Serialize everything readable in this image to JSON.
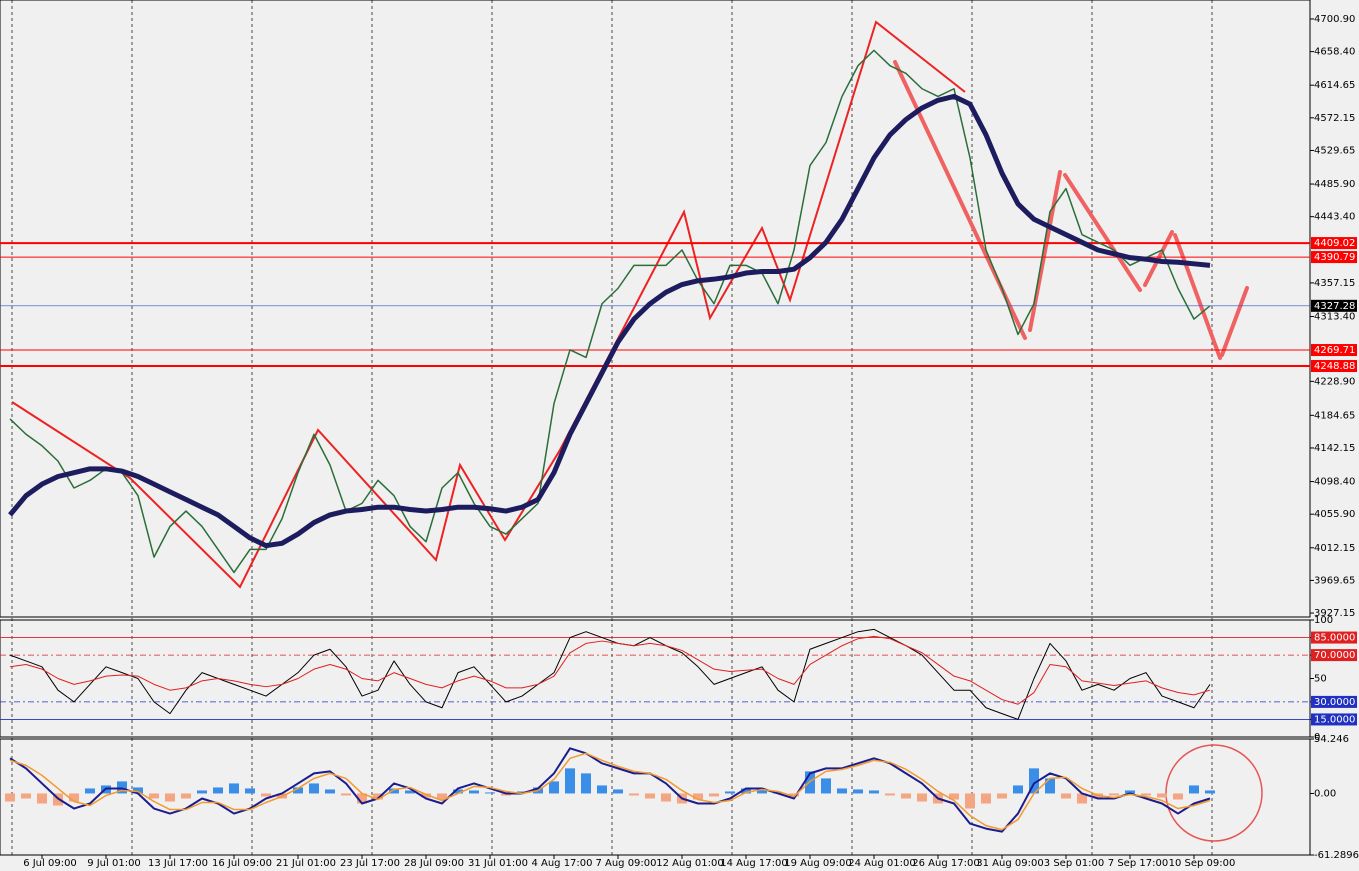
{
  "chart_data": [
    {
      "type": "line",
      "categories": [
        null,
        null,
        "6 Jul 09:00",
        null,
        null,
        null,
        "9 Jul 01:00",
        null,
        null,
        null,
        "13 Jul 17:00",
        null,
        null,
        null,
        "16 Jul 09:00",
        null,
        null,
        null,
        "21 Jul 01:00",
        null,
        null,
        null,
        "23 Jul 17:00",
        null,
        null,
        null,
        "28 Jul 09:00",
        null,
        null,
        null,
        "31 Jul 01:00",
        null,
        null,
        null,
        "4 Aug 17:00",
        null,
        null,
        null,
        "7 Aug 09:00",
        null,
        null,
        null,
        "12 Aug 01:00",
        null,
        null,
        null,
        "14 Aug 17:00",
        null,
        null,
        null,
        "19 Aug 09:00",
        null,
        null,
        null,
        "24 Aug 01:00",
        null,
        null,
        null,
        "26 Aug 17:00",
        null,
        null,
        null,
        "31 Aug 09:00",
        null,
        null,
        null,
        "3 Sep 01:00",
        null,
        null,
        null,
        "7 Sep 17:00",
        null,
        null,
        null,
        "10 Sep 09:00",
        null
      ],
      "series": [
        {
          "color": "#2b6e3a",
          "width": 1.5,
          "values": [
            4180,
            4160,
            4145,
            4125,
            4090,
            4100,
            4115,
            4110,
            4080,
            4000,
            4040,
            4060,
            4040,
            4010,
            3980,
            4010,
            4010,
            4050,
            4110,
            4160,
            4120,
            4060,
            4070,
            4100,
            4080,
            4040,
            4020,
            4090,
            4110,
            4070,
            4040,
            4030,
            4050,
            4070,
            4200,
            4270,
            4260,
            4330,
            4350,
            4380,
            4380,
            4380,
            4400,
            4360,
            4330,
            4380,
            4380,
            4370,
            4330,
            4400,
            4510,
            4540,
            4600,
            4640,
            4660,
            4640,
            4630,
            4610,
            4600,
            4610,
            4520,
            4400,
            4350,
            4290,
            4330,
            4450,
            4480,
            4420,
            4410,
            4400,
            4380,
            4390,
            4400,
            4350,
            4310,
            4327.28
          ]
        },
        {
          "color": "#1c1c5e",
          "width": 5,
          "values": [
            4055,
            4080,
            4095,
            4105,
            4110,
            4115,
            4115,
            4112,
            4105,
            4095,
            4085,
            4075,
            4065,
            4055,
            4040,
            4025,
            4015,
            4018,
            4030,
            4045,
            4055,
            4060,
            4062,
            4065,
            4065,
            4062,
            4060,
            4062,
            4065,
            4065,
            4063,
            4060,
            4065,
            4075,
            4110,
            4160,
            4200,
            4240,
            4280,
            4310,
            4330,
            4345,
            4355,
            4360,
            4362,
            4365,
            4370,
            4372,
            4372,
            4375,
            4390,
            4410,
            4440,
            4480,
            4520,
            4550,
            4570,
            4585,
            4595,
            4600,
            4590,
            4550,
            4500,
            4460,
            4440,
            4430,
            4420,
            4410,
            4400,
            4395,
            4390,
            4388,
            4385,
            4384,
            4382,
            4380
          ]
        }
      ],
      "ylim": [
        3922,
        4725.6
      ],
      "yticks": [
        {
          "value": 4700.9,
          "label": "4700.90"
        },
        {
          "value": 4658.4,
          "label": "4658.40"
        },
        4614.65,
        4572.15,
        4529.65,
        {
          "value": 4485.9,
          "label": "4485.90"
        },
        {
          "value": 4443.4,
          "label": "4443.40"
        },
        4357.15,
        {
          "value": 4313.4,
          "label": "4313.40"
        },
        {
          "value": 4228.9,
          "label": "4228.90"
        },
        4184.65,
        4142.15,
        {
          "value": 4098.4,
          "label": "4098.40"
        },
        {
          "value": 4055.9,
          "label": "4055.90"
        },
        4012.15,
        3969.65,
        3927.15
      ],
      "levels": [
        {
          "value": 4409.02,
          "color": "#ff0000",
          "width": 2
        },
        {
          "value": 4390.79,
          "color": "#ff0000",
          "width": 1
        },
        {
          "value": 4327.28,
          "color": "#3050c0",
          "width": 0.6,
          "box": "#000000"
        },
        {
          "value": 4269.71,
          "color": "#ff0000",
          "width": 1
        },
        {
          "value": 4248.88,
          "color": "#ff0000",
          "width": 2
        }
      ]
    },
    {
      "type": "line",
      "series": [
        {
          "color": "#000000",
          "width": 1,
          "values": [
            70,
            65,
            60,
            40,
            30,
            45,
            60,
            55,
            50,
            30,
            20,
            40,
            55,
            50,
            45,
            40,
            35,
            45,
            55,
            70,
            75,
            60,
            35,
            40,
            65,
            45,
            30,
            25,
            55,
            60,
            45,
            30,
            35,
            45,
            55,
            85,
            90,
            85,
            80,
            78,
            85,
            78,
            72,
            60,
            45,
            50,
            55,
            60,
            40,
            30,
            75,
            80,
            85,
            90,
            92,
            85,
            78,
            70,
            55,
            40,
            40,
            25,
            20,
            15,
            50,
            80,
            65,
            40,
            45,
            40,
            50,
            55,
            35,
            30,
            25,
            45
          ]
        },
        {
          "color": "#e02020",
          "width": 1,
          "values": [
            60,
            62,
            58,
            50,
            45,
            48,
            52,
            53,
            52,
            45,
            40,
            42,
            48,
            50,
            48,
            45,
            43,
            45,
            50,
            58,
            62,
            58,
            50,
            48,
            55,
            50,
            45,
            42,
            48,
            52,
            48,
            42,
            42,
            45,
            52,
            72,
            80,
            82,
            80,
            78,
            80,
            78,
            74,
            66,
            58,
            56,
            57,
            58,
            50,
            45,
            62,
            70,
            78,
            84,
            86,
            84,
            78,
            72,
            62,
            52,
            48,
            40,
            32,
            28,
            38,
            62,
            60,
            48,
            46,
            44,
            46,
            48,
            42,
            38,
            36,
            40
          ]
        }
      ],
      "ylim": [
        0,
        100
      ],
      "yticks": [
        100,
        {
          "value": 85,
          "label": "85.0000",
          "color": "#e02020"
        },
        {
          "value": 70,
          "label": "70.0000",
          "color": "#e02020"
        },
        50,
        {
          "value": 30,
          "label": "30.0000",
          "color": "#2030c0"
        },
        {
          "value": 15,
          "label": "15.0000",
          "color": "#2030c0"
        },
        0
      ]
    },
    {
      "type": "combo",
      "bars": {
        "pos_color": "#3b8ee8",
        "neg_color": "#f4a582",
        "values": [
          -8,
          -5,
          -10,
          -12,
          -8,
          5,
          8,
          12,
          6,
          -5,
          -8,
          -5,
          3,
          6,
          10,
          5,
          -3,
          -5,
          6,
          10,
          4,
          -2,
          -10,
          -6,
          5,
          3,
          -4,
          -6,
          4,
          3,
          1,
          -2,
          2,
          6,
          12,
          25,
          20,
          8,
          4,
          -2,
          -5,
          -8,
          -10,
          -6,
          -3,
          2,
          5,
          4,
          1,
          -3,
          22,
          15,
          5,
          4,
          3,
          -2,
          -5,
          -8,
          -10,
          -6,
          -15,
          -10,
          -5,
          8,
          25,
          15,
          -5,
          -10,
          -4,
          -2,
          3,
          -2,
          -4,
          -6,
          8,
          3
        ]
      },
      "series": [
        {
          "color": "#1c1c8e",
          "width": 2,
          "values": [
            35,
            25,
            10,
            -5,
            -15,
            -10,
            5,
            5,
            0,
            -15,
            -20,
            -15,
            -5,
            -10,
            -20,
            -15,
            -5,
            0,
            10,
            20,
            22,
            10,
            -10,
            -5,
            10,
            5,
            -5,
            -10,
            5,
            10,
            5,
            0,
            0,
            5,
            20,
            45,
            40,
            30,
            25,
            20,
            20,
            10,
            -5,
            -10,
            -10,
            -5,
            5,
            5,
            0,
            -5,
            20,
            25,
            25,
            30,
            35,
            30,
            20,
            10,
            -5,
            -10,
            -30,
            -35,
            -38,
            -20,
            10,
            20,
            15,
            0,
            -5,
            -5,
            0,
            -5,
            -10,
            -20,
            -10,
            -5
          ]
        },
        {
          "color": "#f29a2e",
          "width": 1.5,
          "values": [
            33,
            28,
            18,
            5,
            -8,
            -12,
            -2,
            3,
            2,
            -8,
            -16,
            -16,
            -9,
            -9,
            -16,
            -16,
            -9,
            -3,
            5,
            15,
            20,
            15,
            0,
            -6,
            4,
            6,
            -1,
            -7,
            0,
            7,
            6,
            2,
            0,
            3,
            14,
            35,
            40,
            33,
            27,
            22,
            20,
            14,
            3,
            -6,
            -9,
            -7,
            1,
            4,
            2,
            -3,
            12,
            22,
            24,
            28,
            33,
            31,
            24,
            14,
            2,
            -7,
            -22,
            -32,
            -36,
            -26,
            0,
            15,
            16,
            5,
            -2,
            -4,
            -1,
            -3,
            -7,
            -15,
            -12,
            -7
          ]
        }
      ],
      "ylim": [
        -61.2896,
        54.246
      ],
      "yticks": [
        54.246,
        {
          "value": 0,
          "label": "0.00"
        },
        -61.2896
      ]
    }
  ]
}
